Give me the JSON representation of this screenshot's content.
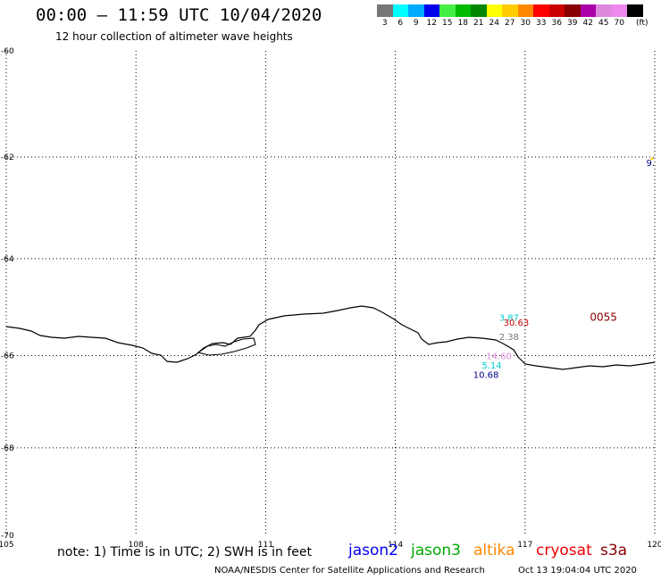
{
  "title": "00:00 – 11:59 UTC 10/04/2020",
  "subtitle": "12 hour collection of altimeter wave heights",
  "legend": {
    "unit": "(ft)",
    "bins": [
      {
        "label": "3",
        "color": "#777777"
      },
      {
        "label": "6",
        "color": "#00ffff"
      },
      {
        "label": "9",
        "color": "#00aaff"
      },
      {
        "label": "12",
        "color": "#0000ee"
      },
      {
        "label": "15",
        "color": "#44ee44"
      },
      {
        "label": "18",
        "color": "#00bb00"
      },
      {
        "label": "21",
        "color": "#008800"
      },
      {
        "label": "24",
        "color": "#ffff00"
      },
      {
        "label": "27",
        "color": "#ffcc00"
      },
      {
        "label": "30",
        "color": "#ff8800"
      },
      {
        "label": "33",
        "color": "#ff0000"
      },
      {
        "label": "36",
        "color": "#cc0000"
      },
      {
        "label": "39",
        "color": "#880000"
      },
      {
        "label": "42",
        "color": "#aa00aa"
      },
      {
        "label": "45",
        "color": "#dd88dd"
      },
      {
        "label": "70",
        "color": "#ee88ee"
      },
      {
        "label": "",
        "color": "#000000"
      }
    ]
  },
  "map": {
    "lon_ticks": [
      "105",
      "108",
      "111",
      "114",
      "117",
      "120"
    ],
    "lat_ticks": [
      "-60",
      "-62",
      "-64",
      "-66",
      "-68",
      "-70"
    ],
    "lon_range": [
      105,
      120
    ],
    "lat_range": [
      -70,
      -60
    ],
    "grid": "dotted",
    "coastline_color": "#000000"
  },
  "observations": [
    {
      "text": "3.87",
      "color": "#00cccc",
      "lon": 116.4,
      "lat": -65.2
    },
    {
      "text": "0055",
      "color": "#880000",
      "lon": 118.5,
      "lat": -65.2
    },
    {
      "text": "30.63",
      "color": "#cc0000",
      "lon": 116.5,
      "lat": -65.3
    },
    {
      "text": "2.38",
      "color": "#777777",
      "lon": 116.4,
      "lat": -65.6
    },
    {
      "text": "14.60",
      "color": "#dd88dd",
      "lon": 116.1,
      "lat": -66.0
    },
    {
      "text": "5.14",
      "color": "#00cccc",
      "lon": 116.0,
      "lat": -66.2
    },
    {
      "text": "10.68",
      "color": "#000088",
      "lon": 115.8,
      "lat": -66.4
    },
    {
      "text": "9.",
      "color": "#000088",
      "lon": 120.0,
      "lat": -62.1
    }
  ],
  "note": "note: 1) Time is in UTC; 2) SWH is in feet",
  "satellites": [
    {
      "name": "jason2",
      "color": "#0000ee"
    },
    {
      "name": "jason3",
      "color": "#00aa00"
    },
    {
      "name": "altika",
      "color": "#ff8800"
    },
    {
      "name": "cryosat",
      "color": "#ee0000"
    },
    {
      "name": "s3a",
      "color": "#880000"
    }
  ],
  "credit": "NOAA/NESDIS Center for Satellite Applications and Research",
  "credit_time": "Oct 13 19:04:04 UTC 2020"
}
